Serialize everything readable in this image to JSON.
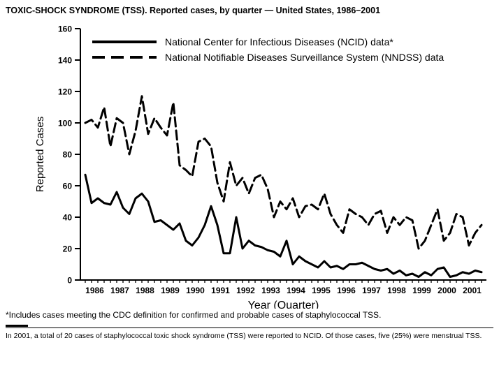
{
  "chart_data": {
    "type": "line",
    "title": "TOXIC-SHOCK SYNDROME (TSS). Reported cases, by quarter — United States, 1986–2001",
    "xlabel": "Year (Quarter)",
    "ylabel": "Reported Cases",
    "ylim": [
      0,
      160
    ],
    "ytick_step": 20,
    "grid": false,
    "legend_position": "top-inside",
    "years": [
      1986,
      1987,
      1988,
      1989,
      1990,
      1991,
      1992,
      1993,
      1994,
      1995,
      1996,
      1997,
      1998,
      1999,
      2000,
      2001
    ],
    "quarters_per_year": 4,
    "series": [
      {
        "name": "National Center for Infectious Diseases (NCID) data*",
        "line_style": "solid",
        "color": "#000000",
        "values": [
          67,
          49,
          52,
          49,
          48,
          56,
          46,
          42,
          52,
          55,
          50,
          37,
          38,
          35,
          32,
          36,
          25,
          22,
          27,
          35,
          47,
          35,
          17,
          17,
          40,
          20,
          25,
          22,
          21,
          19,
          18,
          15,
          25,
          10,
          15,
          12,
          10,
          8,
          12,
          8,
          9,
          7,
          10,
          10,
          11,
          9,
          7,
          6,
          7,
          4,
          6,
          3,
          4,
          2,
          5,
          3,
          7,
          8,
          2,
          3,
          5,
          4,
          6,
          5
        ]
      },
      {
        "name": "National Notifiable Diseases Surveillance System (NNDSS) data",
        "line_style": "dashed",
        "color": "#000000",
        "values": [
          100,
          102,
          97,
          110,
          85,
          103,
          100,
          80,
          95,
          117,
          93,
          103,
          97,
          92,
          113,
          73,
          70,
          66,
          88,
          90,
          85,
          62,
          50,
          75,
          60,
          65,
          55,
          65,
          67,
          58,
          40,
          50,
          45,
          52,
          40,
          47,
          48,
          45,
          55,
          42,
          35,
          30,
          45,
          42,
          40,
          35,
          42,
          44,
          30,
          40,
          35,
          40,
          38,
          20,
          25,
          35,
          45,
          25,
          30,
          42,
          40,
          22,
          30,
          35
        ]
      }
    ]
  },
  "footnotes": {
    "asterisk": "*Includes cases meeting the CDC definition for confirmed and probable cases of staphylococcal TSS.",
    "note_2001": "In 2001, a total of 20 cases of staphylococcal toxic shock syndrome (TSS) were reported to NCID. Of those cases, five (25%) were menstrual TSS."
  },
  "colors": {
    "line": "#000000",
    "background": "#ffffff"
  }
}
